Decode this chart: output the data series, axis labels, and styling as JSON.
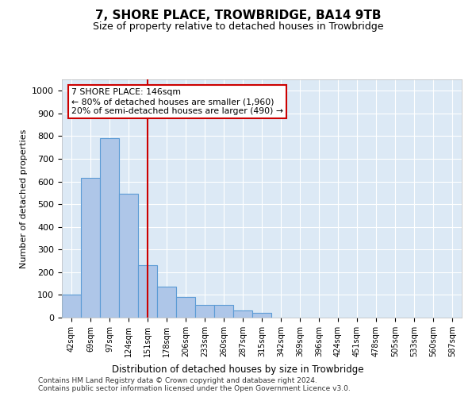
{
  "title": "7, SHORE PLACE, TROWBRIDGE, BA14 9TB",
  "subtitle": "Size of property relative to detached houses in Trowbridge",
  "xlabel": "Distribution of detached houses by size in Trowbridge",
  "ylabel": "Number of detached properties",
  "bin_labels": [
    "42sqm",
    "69sqm",
    "97sqm",
    "124sqm",
    "151sqm",
    "178sqm",
    "206sqm",
    "233sqm",
    "260sqm",
    "287sqm",
    "315sqm",
    "342sqm",
    "369sqm",
    "396sqm",
    "424sqm",
    "451sqm",
    "478sqm",
    "505sqm",
    "533sqm",
    "560sqm",
    "587sqm"
  ],
  "bar_heights": [
    100,
    615,
    790,
    545,
    230,
    135,
    90,
    55,
    55,
    30,
    20,
    0,
    0,
    0,
    0,
    0,
    0,
    0,
    0,
    0,
    0
  ],
  "bar_color": "#aec6e8",
  "bar_edgecolor": "#5b9bd5",
  "vline_x_index": 4,
  "vline_color": "#cc0000",
  "annotation_text": "7 SHORE PLACE: 146sqm\n← 80% of detached houses are smaller (1,960)\n20% of semi-detached houses are larger (490) →",
  "annotation_box_color": "#ffffff",
  "annotation_box_edgecolor": "#cc0000",
  "ylim": [
    0,
    1050
  ],
  "yticks": [
    0,
    100,
    200,
    300,
    400,
    500,
    600,
    700,
    800,
    900,
    1000
  ],
  "background_color": "#dce9f5",
  "footer_line1": "Contains HM Land Registry data © Crown copyright and database right 2024.",
  "footer_line2": "Contains public sector information licensed under the Open Government Licence v3.0."
}
